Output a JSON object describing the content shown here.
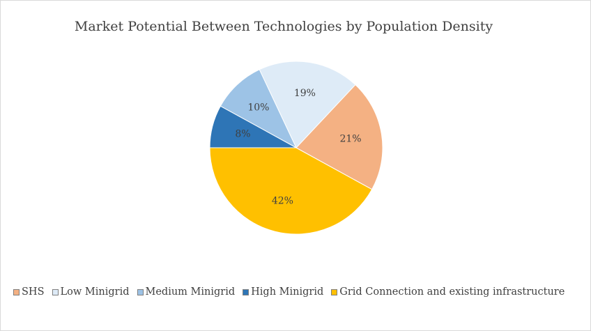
{
  "chart_data": {
    "type": "pie",
    "title": "Market Potential Between Technologies by Population Density",
    "categories": [
      "SHS",
      "Low Minigrid",
      "Medium Minigrid",
      "High Minigrid",
      "Grid Connection and existing infrastructure"
    ],
    "values": [
      21,
      19,
      10,
      8,
      42
    ],
    "labels": [
      "21%",
      "19%",
      "10%",
      "8%",
      "42%"
    ],
    "colors": [
      "#F4B183",
      "#DEEBF7",
      "#9DC3E6",
      "#2E75B6",
      "#FFC000"
    ],
    "start_category": "Grid Connection and existing infrastructure",
    "start_angle_deg": 180,
    "direction": "counterclockwise",
    "legend_position": "bottom"
  }
}
